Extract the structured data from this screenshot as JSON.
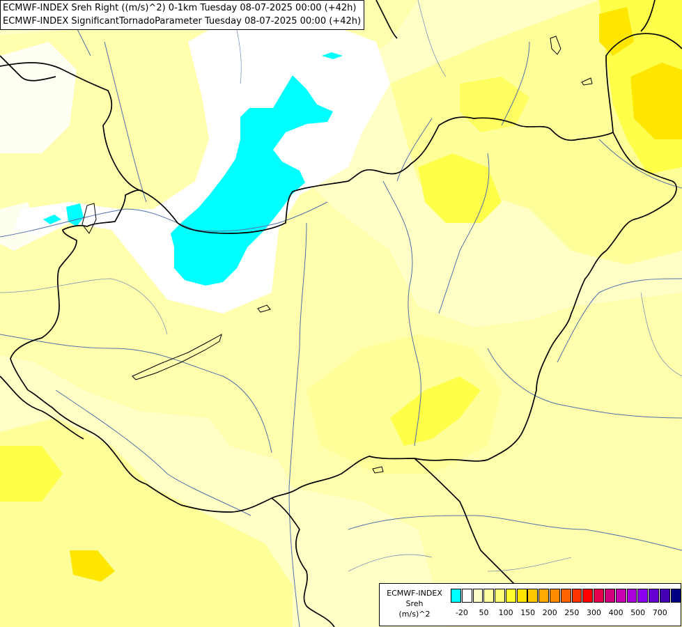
{
  "titles": {
    "line1": "ECMWF-INDEX Sreh Right ((m/s)^2) 0-1km Tuesday 08-07-2025 00:00 (+42h)",
    "line2": "ECMWF-INDEX SignificantTornadoParameter Tuesday 08-07-2025 00:00 (+42h)"
  },
  "legend": {
    "line1": "ECMWF-INDEX",
    "line2": "Sreh",
    "line3": "(m/s)^2",
    "colors": [
      "#00ffff",
      "#ffffff",
      "#ffffc8",
      "#ffffa0",
      "#ffff78",
      "#ffff30",
      "#ffe600",
      "#ffc800",
      "#ffaa00",
      "#ff8c00",
      "#ff6400",
      "#ff3200",
      "#ff0000",
      "#e6004b",
      "#d2007d",
      "#c800b4",
      "#aa00dc",
      "#8c00f0",
      "#6400d2",
      "#4600b4",
      "#000080"
    ],
    "ticks": [
      {
        "label": "-20",
        "pos": 0.5
      },
      {
        "label": "50",
        "pos": 2.5
      },
      {
        "label": "100",
        "pos": 4.5
      },
      {
        "label": "150",
        "pos": 6.5
      },
      {
        "label": "200",
        "pos": 8.5
      },
      {
        "label": "250",
        "pos": 10.5
      },
      {
        "label": "300",
        "pos": 12.5
      },
      {
        "label": "400",
        "pos": 14.5
      },
      {
        "label": "500",
        "pos": 16.5
      },
      {
        "label": "700",
        "pos": 18.5
      }
    ]
  }
}
